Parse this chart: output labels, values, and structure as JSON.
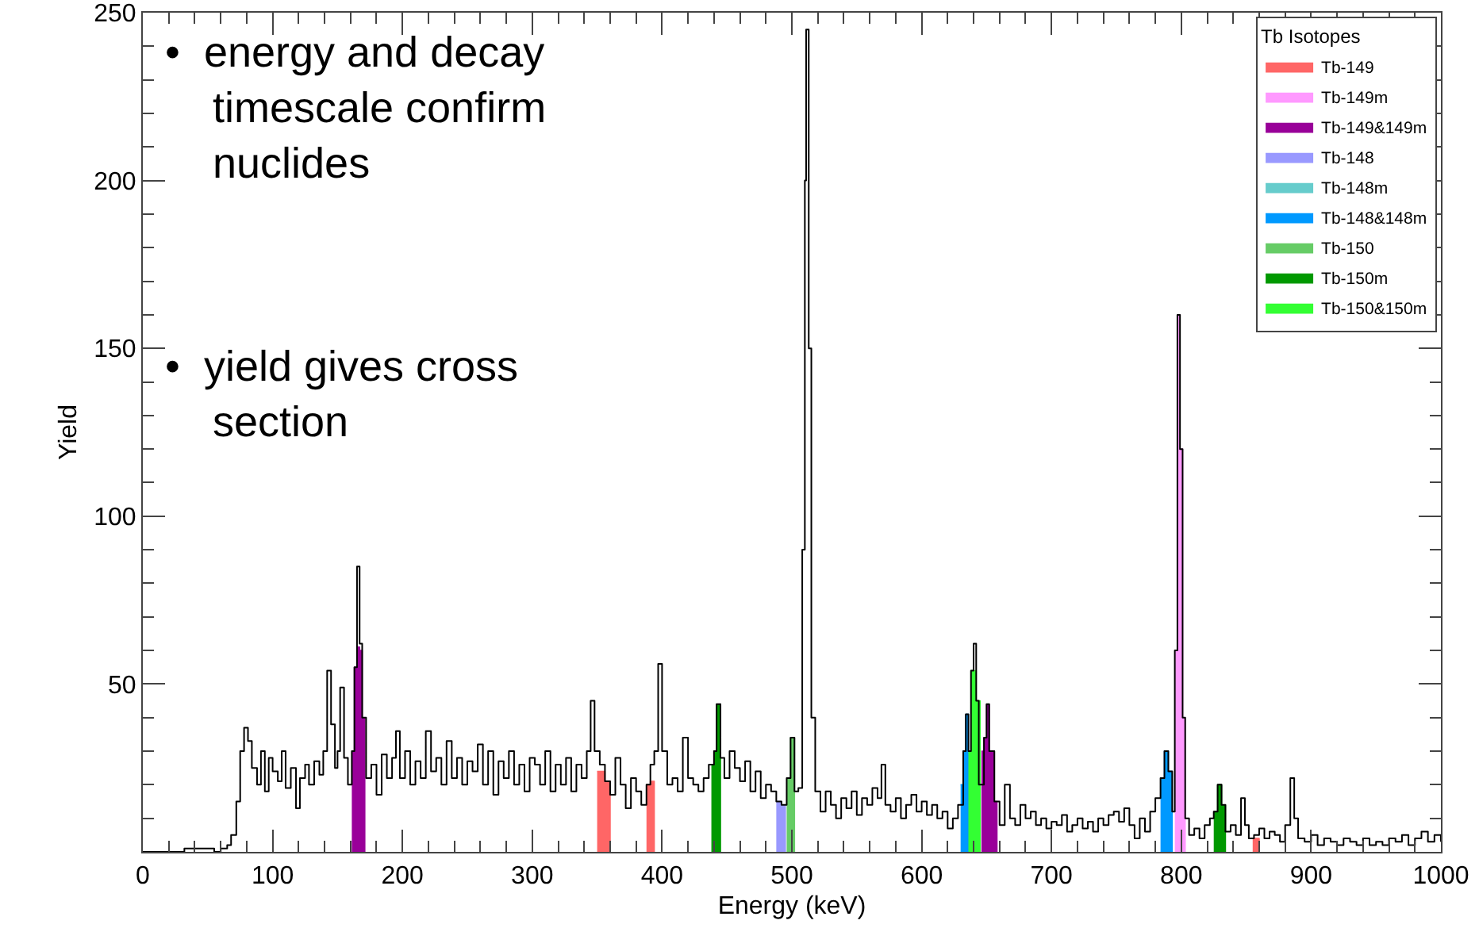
{
  "chart_data": {
    "type": "step",
    "xlabel": "Energy (keV)",
    "ylabel": "Yield",
    "legend_title": "Tb Isotopes",
    "legend": "top right",
    "grid": false,
    "xlim": [
      0,
      1000
    ],
    "ylim": [
      0,
      250
    ],
    "xticks": [
      0,
      100,
      200,
      300,
      400,
      500,
      600,
      700,
      800,
      900,
      1000
    ],
    "yticks": [
      50,
      100,
      150,
      200,
      250
    ],
    "annotations": [
      "•  energy and decay timescale confirm nuclides",
      "•  yield gives cross section"
    ],
    "series": [
      {
        "color": "#000000",
        "x": [
          0,
          30,
          32,
          45,
          55,
          60,
          65,
          68,
          72,
          75,
          78,
          81,
          84,
          88,
          91,
          94,
          97,
          100,
          104,
          107,
          110,
          114,
          118,
          121,
          125,
          128,
          132,
          136,
          139,
          142,
          145,
          148,
          150,
          152,
          155,
          158,
          161,
          163,
          165,
          167,
          169,
          172,
          176,
          180,
          184,
          188,
          192,
          195,
          198,
          202,
          206,
          210,
          214,
          218,
          222,
          226,
          230,
          234,
          238,
          242,
          246,
          250,
          254,
          258,
          262,
          266,
          270,
          274,
          278,
          282,
          286,
          290,
          294,
          298,
          302,
          306,
          310,
          314,
          318,
          322,
          326,
          330,
          334,
          338,
          342,
          345,
          348,
          352,
          356,
          360,
          364,
          368,
          372,
          376,
          380,
          384,
          388,
          391,
          394,
          397,
          400,
          404,
          408,
          412,
          416,
          420,
          424,
          428,
          432,
          436,
          440,
          442,
          445,
          448,
          452,
          456,
          460,
          464,
          468,
          472,
          476,
          480,
          484,
          488,
          492,
          496,
          499,
          502,
          505,
          508,
          510,
          511,
          513,
          515,
          518,
          522,
          526,
          530,
          534,
          538,
          542,
          546,
          550,
          554,
          558,
          562,
          566,
          569,
          572,
          576,
          580,
          584,
          588,
          592,
          596,
          600,
          604,
          608,
          612,
          616,
          620,
          624,
          628,
          632,
          634,
          636,
          638,
          640,
          642,
          644,
          648,
          650,
          652,
          656,
          660,
          664,
          668,
          672,
          676,
          680,
          684,
          688,
          692,
          696,
          700,
          704,
          708,
          712,
          716,
          720,
          724,
          728,
          732,
          736,
          740,
          744,
          748,
          752,
          756,
          760,
          764,
          768,
          772,
          776,
          780,
          784,
          787,
          790,
          793,
          795,
          797,
          799,
          801,
          803,
          806,
          810,
          814,
          818,
          822,
          825,
          828,
          831,
          834,
          838,
          842,
          846,
          849,
          852,
          856,
          860,
          864,
          868,
          872,
          876,
          880,
          884,
          887,
          890,
          895,
          900,
          905,
          910,
          915,
          920,
          925,
          930,
          935,
          940,
          945,
          950,
          955,
          960,
          965,
          970,
          975,
          980,
          985,
          990,
          995,
          1000
        ],
        "values": [
          0,
          0,
          1,
          1,
          0,
          1,
          2,
          5,
          15,
          30,
          37,
          33,
          25,
          20,
          30,
          18,
          28,
          24,
          21,
          30,
          19,
          25,
          13,
          22,
          26,
          20,
          27,
          23,
          30,
          54,
          38,
          25,
          30,
          49,
          28,
          20,
          30,
          55,
          85,
          62,
          40,
          22,
          26,
          17,
          29,
          22,
          28,
          36,
          22,
          30,
          20,
          27,
          22,
          36,
          24,
          28,
          20,
          33,
          22,
          28,
          20,
          27,
          24,
          32,
          20,
          30,
          17,
          27,
          22,
          30,
          20,
          26,
          18,
          28,
          26,
          20,
          30,
          18,
          26,
          20,
          28,
          18,
          26,
          22,
          30,
          45,
          30,
          26,
          21,
          17,
          28,
          20,
          13,
          22,
          18,
          14,
          20,
          26,
          30,
          56,
          30,
          20,
          22,
          18,
          34,
          22,
          20,
          18,
          22,
          26,
          30,
          44,
          28,
          22,
          30,
          25,
          21,
          27,
          18,
          24,
          16,
          20,
          18,
          15,
          14,
          22,
          34,
          18,
          19,
          90,
          200,
          245,
          150,
          40,
          18,
          12,
          18,
          14,
          10,
          16,
          13,
          18,
          11,
          16,
          14,
          19,
          16,
          26,
          14,
          12,
          16,
          10,
          14,
          17,
          12,
          15,
          11,
          14,
          10,
          12,
          7,
          10,
          14,
          30,
          41,
          30,
          54,
          62,
          45,
          20,
          34,
          44,
          30,
          15,
          8,
          20,
          10,
          8,
          14,
          10,
          12,
          8,
          10,
          7,
          9,
          8,
          11,
          6,
          8,
          10,
          7,
          9,
          6,
          10,
          8,
          11,
          12,
          9,
          13,
          8,
          4,
          10,
          6,
          12,
          16,
          22,
          30,
          24,
          12,
          60,
          160,
          120,
          40,
          10,
          5,
          7,
          4,
          8,
          10,
          12,
          20,
          14,
          6,
          8,
          5,
          16,
          8,
          4,
          5,
          7,
          4,
          6,
          5,
          3,
          8,
          22,
          10,
          4,
          3,
          5,
          2,
          4,
          3,
          2,
          4,
          3,
          2,
          4,
          2,
          3,
          2,
          4,
          3,
          5,
          2,
          4,
          6,
          3,
          5,
          3
        ]
      },
      {
        "type": "area",
        "name": "Tb-149",
        "color": "#ff6666",
        "x": [
          350,
          356,
          360,
          388,
          391,
          394,
          855,
          860
        ],
        "values": [
          24,
          21,
          0,
          20,
          21,
          0,
          4,
          0
        ]
      },
      {
        "type": "area",
        "name": "Tb-149m",
        "color": "#ff99ff",
        "x": [
          795,
          797,
          799,
          801,
          803
        ],
        "values": [
          60,
          160,
          120,
          40,
          0
        ]
      },
      {
        "type": "area",
        "name": "Tb-149&149m",
        "color": "#990099",
        "x": [
          161,
          163,
          165,
          167,
          169,
          171,
          646,
          648,
          650,
          652,
          656,
          658
        ],
        "values": [
          30,
          55,
          61,
          60,
          40,
          0,
          30,
          34,
          44,
          30,
          15,
          0
        ]
      },
      {
        "type": "area",
        "name": "Tb-148",
        "color": "#9999ff",
        "x": [
          488,
          492,
          495
        ],
        "values": [
          15,
          14,
          0
        ]
      },
      {
        "type": "area",
        "name": "Tb-148m",
        "color": "#66cccc"
      },
      {
        "type": "area",
        "name": "Tb-148&148m",
        "color": "#0099ff",
        "x": [
          630,
          632,
          634,
          636,
          784,
          787,
          790,
          793
        ],
        "values": [
          20,
          30,
          41,
          0,
          22,
          30,
          24,
          0
        ]
      },
      {
        "type": "area",
        "name": "Tb-150",
        "color": "#66cc66",
        "x": [
          496,
          499,
          502
        ],
        "values": [
          22,
          34,
          0
        ]
      },
      {
        "type": "area",
        "name": "Tb-150m",
        "color": "#009900",
        "x": [
          438,
          440,
          442,
          445,
          825,
          828,
          831,
          834
        ],
        "values": [
          26,
          30,
          44,
          0,
          12,
          20,
          14,
          0
        ]
      },
      {
        "type": "area",
        "name": "Tb-150&150m",
        "color": "#33ff33",
        "x": [
          636,
          638,
          640,
          642,
          645
        ],
        "values": [
          30,
          54,
          54,
          45,
          0
        ]
      }
    ]
  }
}
